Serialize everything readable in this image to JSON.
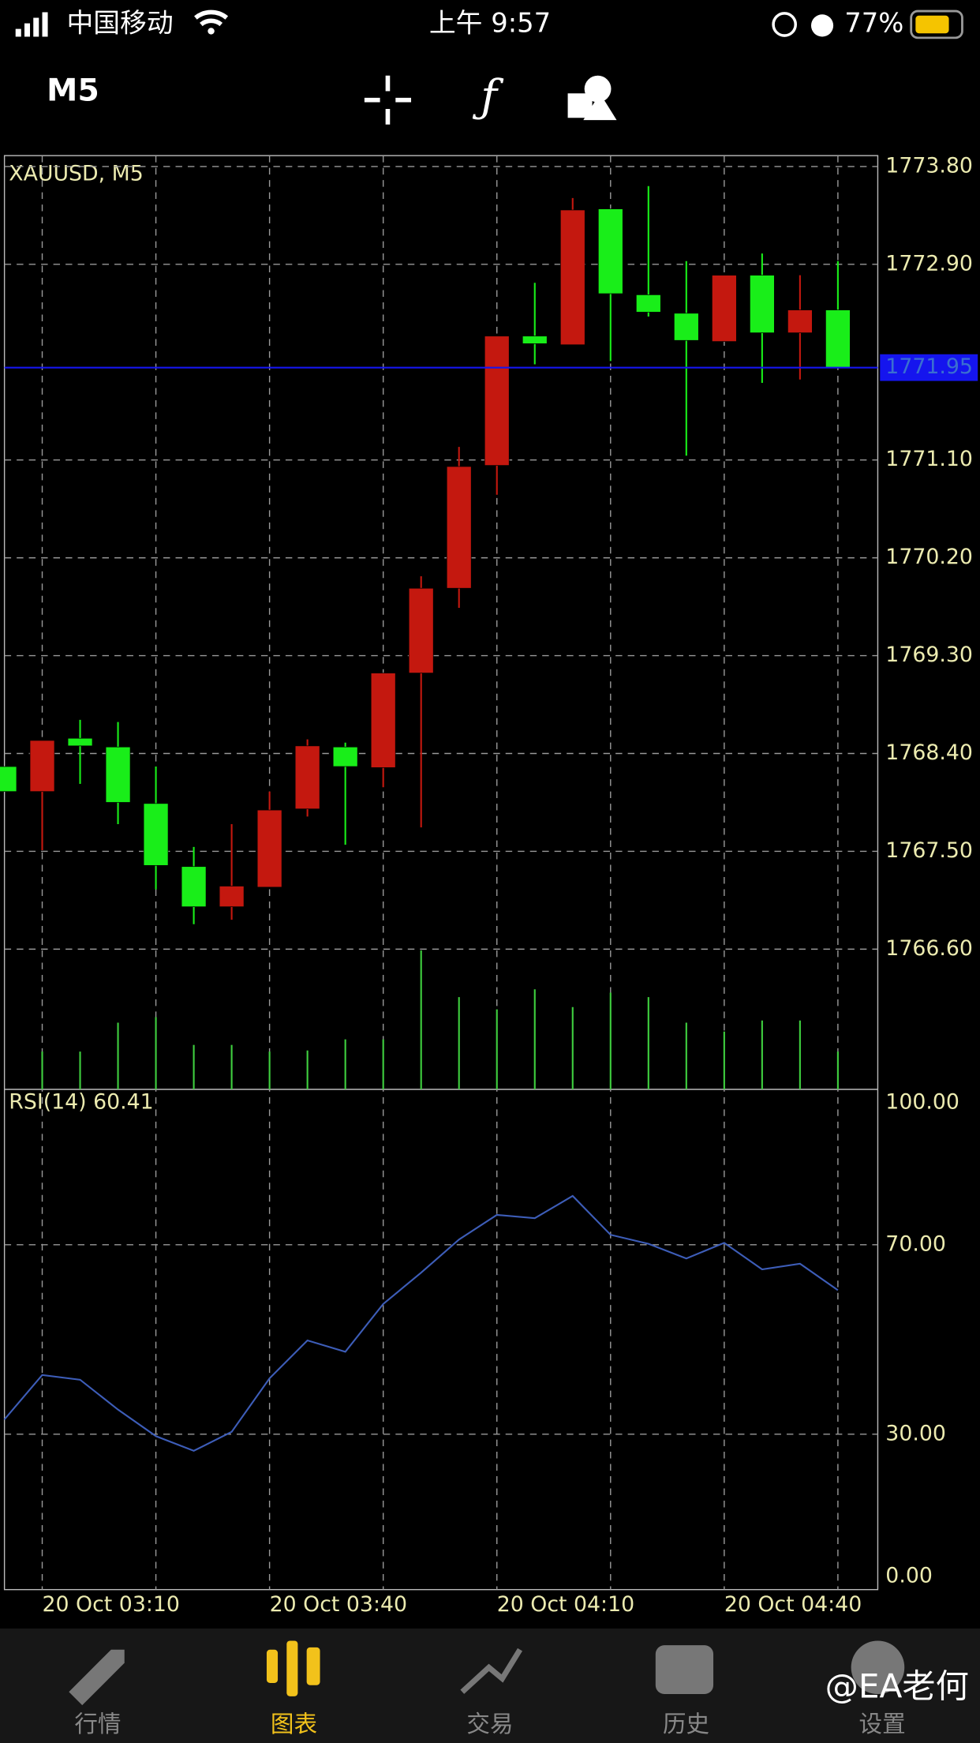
{
  "status_bar": {
    "carrier": "中国移动",
    "time": "上午 9:57",
    "battery": "77%"
  },
  "toolbar": {
    "timeframe": "M5"
  },
  "chart_data": [
    {
      "type": "candlestick",
      "title": "XAUUSD, M5",
      "categories": [
        null,
        "20 Oct 03:10",
        null,
        null,
        null,
        null,
        null,
        "20 Oct 03:40",
        null,
        null,
        null,
        null,
        null,
        "20 Oct 04:10",
        null,
        null,
        null,
        null,
        null,
        "20 Oct 04:40",
        null,
        null,
        null
      ],
      "open": [
        1768.28,
        1768.05,
        1768.54,
        1768.46,
        1767.94,
        1767.36,
        1766.99,
        1767.17,
        1767.89,
        1768.46,
        1768.27,
        1769.14,
        1769.92,
        1771.05,
        1772.24,
        1772.16,
        1773.41,
        1772.62,
        1772.45,
        1772.19,
        1772.8,
        1772.27,
        1772.48
      ],
      "high": [
        1768.28,
        1768.52,
        1768.71,
        1768.69,
        1768.28,
        1767.54,
        1767.75,
        1768.05,
        1768.53,
        1768.5,
        1769.14,
        1770.03,
        1771.22,
        1772.24,
        1772.73,
        1773.51,
        1773.41,
        1773.62,
        1772.93,
        1772.8,
        1773.0,
        1772.8,
        1772.93
      ],
      "low": [
        1768.05,
        1767.51,
        1768.12,
        1767.75,
        1767.15,
        1766.83,
        1766.87,
        1767.17,
        1767.82,
        1767.56,
        1768.09,
        1767.72,
        1769.74,
        1770.78,
        1771.98,
        1772.16,
        1772.01,
        1772.42,
        1771.14,
        1772.19,
        1771.81,
        1771.84,
        1771.95
      ],
      "close": [
        1768.05,
        1768.52,
        1768.47,
        1767.95,
        1767.37,
        1766.99,
        1767.18,
        1767.88,
        1768.47,
        1768.28,
        1769.14,
        1769.92,
        1771.04,
        1772.24,
        1772.17,
        1773.4,
        1772.63,
        1772.46,
        1772.2,
        1772.8,
        1772.27,
        1772.48,
        1771.95
      ],
      "up_color": "#c4180f",
      "down_color": "#19ee19",
      "volume": [
        null,
        34,
        34,
        60,
        65,
        40,
        40,
        34,
        35,
        45,
        45,
        125,
        83,
        72,
        90,
        74,
        87,
        83,
        60,
        52,
        62,
        62,
        34
      ],
      "volume_color": "#3fcf3f",
      "current_price": {
        "value": 1771.95,
        "label": "1771.95"
      },
      "current_price_color": "#1515ee",
      "ylim": [
        1765.31,
        1773.9
      ],
      "yticks": [
        {
          "value": 1773.8,
          "label": "1773.80"
        },
        {
          "value": 1772.9,
          "label": "1772.90"
        },
        {
          "value": 1771.1,
          "label": "1771.10"
        },
        {
          "value": 1770.2,
          "label": "1770.20"
        },
        {
          "value": 1769.3,
          "label": "1769.30"
        },
        {
          "value": 1768.4,
          "label": "1768.40"
        },
        {
          "value": 1767.5,
          "label": "1767.50"
        },
        {
          "value": 1766.6,
          "label": "1766.60"
        }
      ],
      "grid": true
    },
    {
      "type": "line",
      "title": "RSI(14) 60.41",
      "values": [
        33.1,
        42.5,
        41.5,
        35.2,
        29.6,
        26.5,
        30.5,
        41.8,
        49.8,
        47.4,
        57.5,
        64.1,
        71.1,
        76.3,
        75.6,
        80.3,
        72.1,
        70.2,
        67.1,
        70.4,
        64.8,
        66.0,
        60.41
      ],
      "color": "#3d5db8",
      "ylim": [
        -2.8,
        102.8
      ],
      "yticks": [
        {
          "value": 100,
          "label": "100.00"
        },
        {
          "value": 70,
          "label": "70.00"
        },
        {
          "value": 30,
          "label": "30.00"
        },
        {
          "value": 0,
          "label": "0.00"
        }
      ],
      "grid": true
    }
  ],
  "tabs": [
    {
      "label": "行情",
      "active": false
    },
    {
      "label": "图表",
      "active": true
    },
    {
      "label": "交易",
      "active": false
    },
    {
      "label": "历史",
      "active": false
    },
    {
      "label": "设置",
      "active": false
    }
  ],
  "watermark": "@EA老何"
}
